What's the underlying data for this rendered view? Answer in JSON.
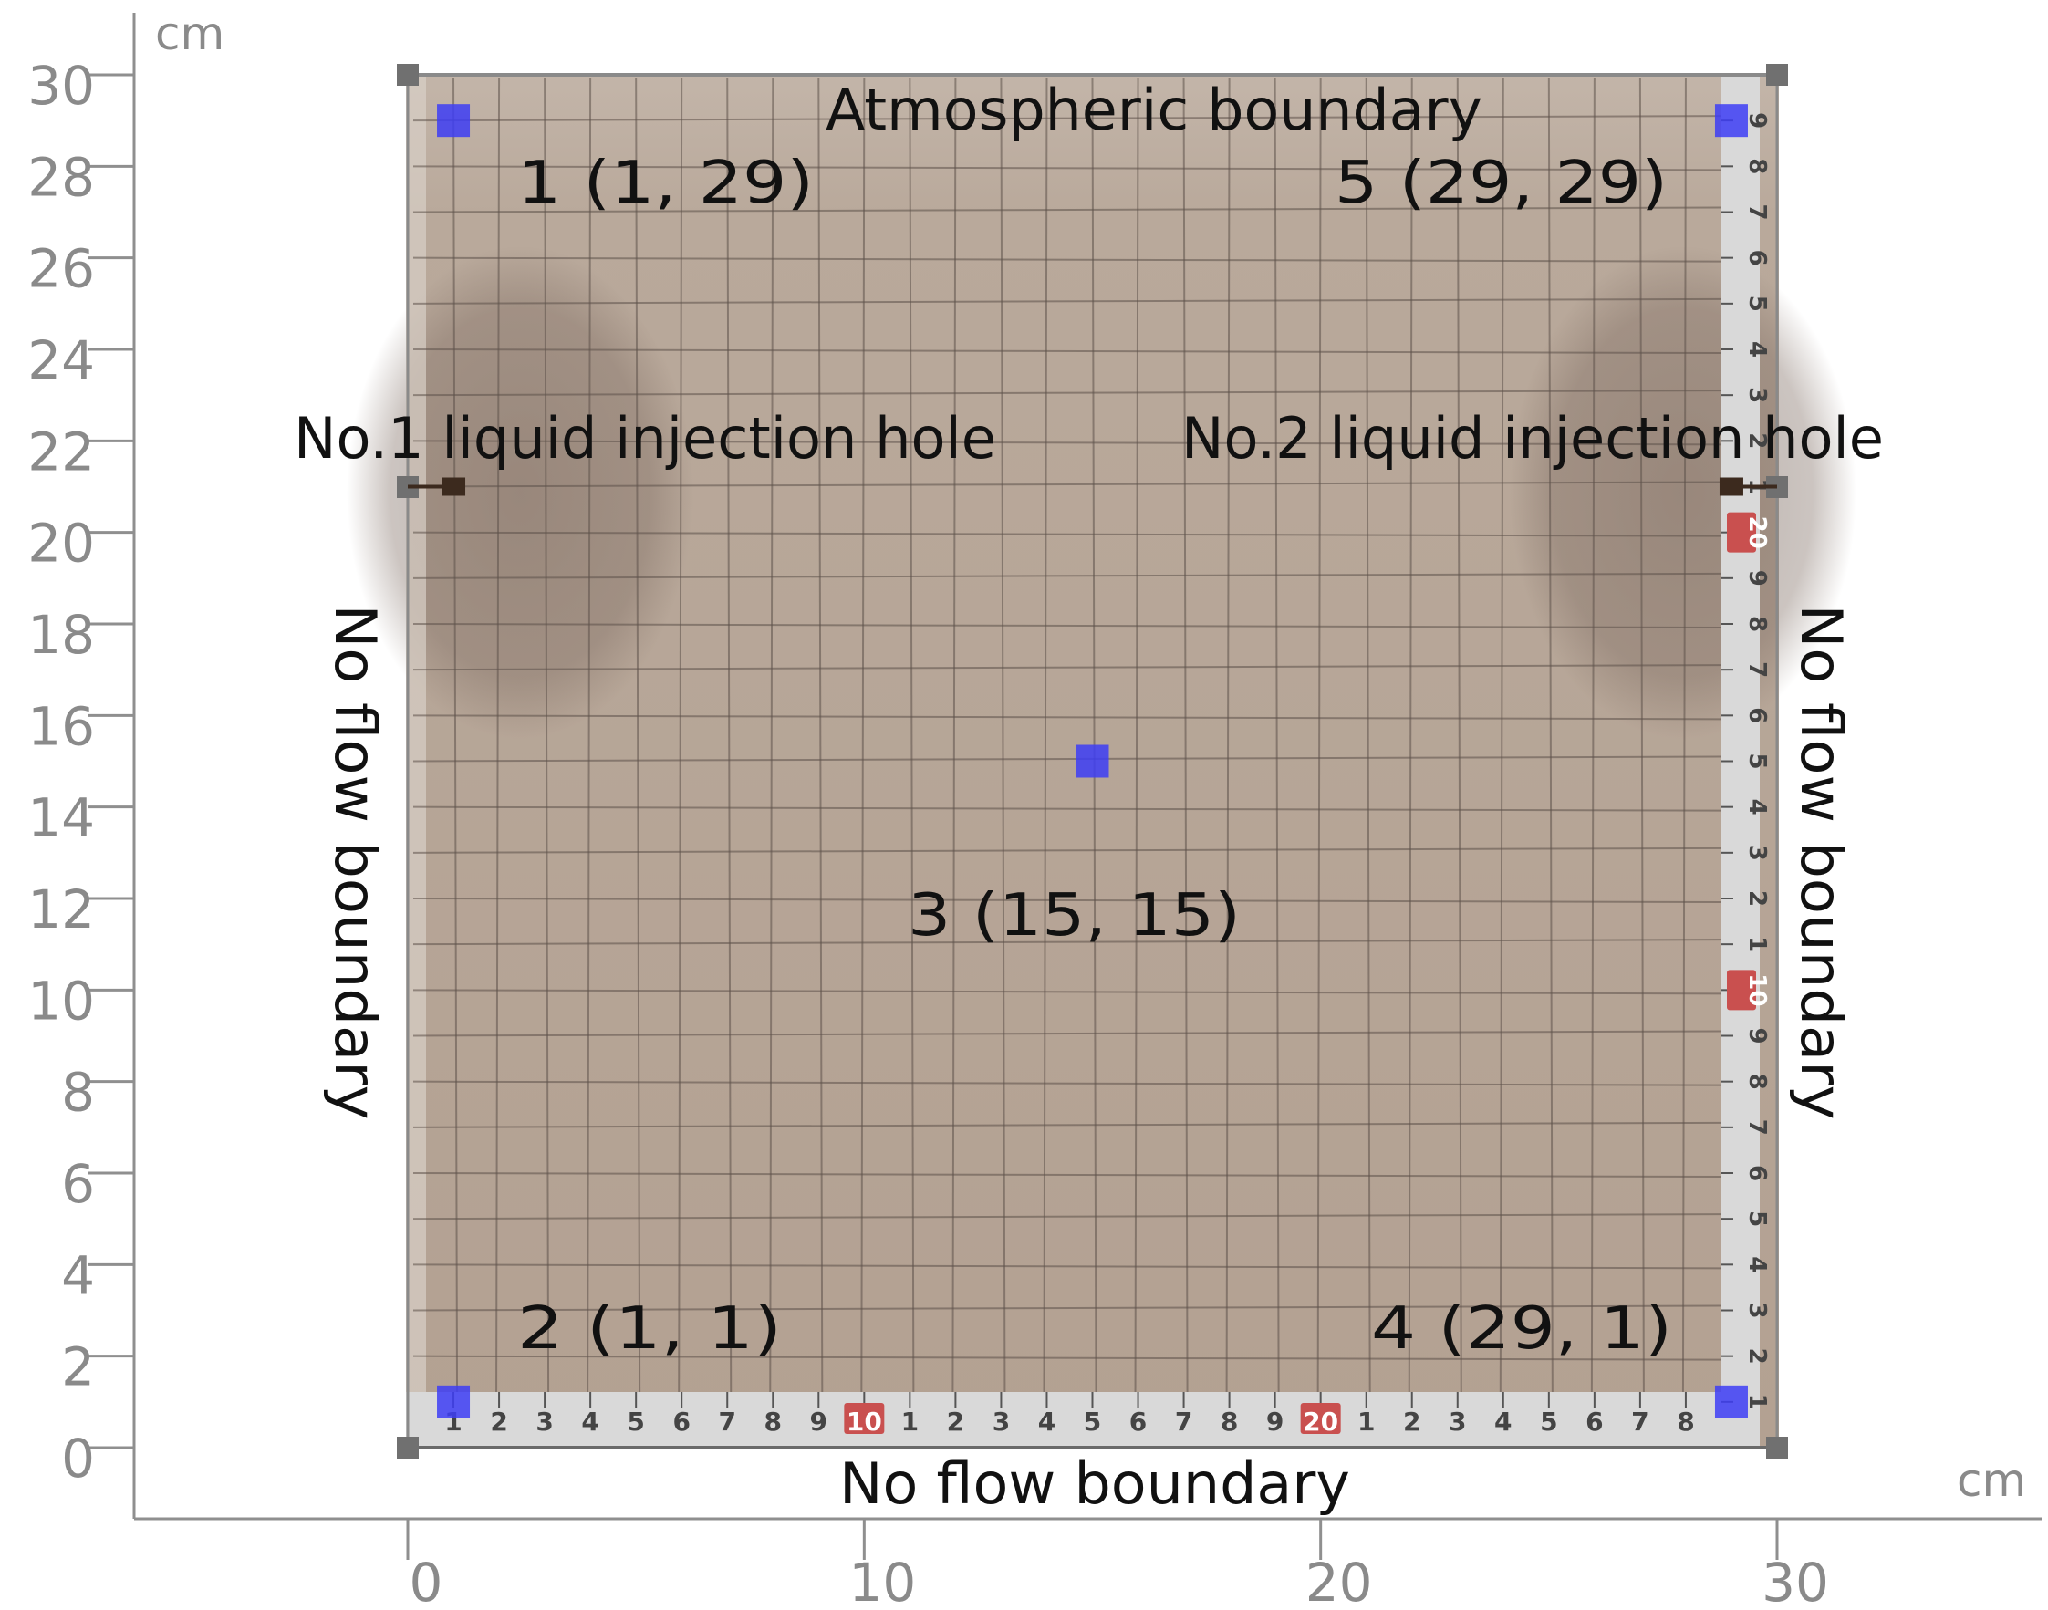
{
  "figure": {
    "x_unit": "cm",
    "y_unit": "cm",
    "x_ticks": [
      0,
      10,
      20,
      30
    ],
    "y_ticks": [
      0,
      2,
      4,
      6,
      8,
      10,
      12,
      14,
      16,
      18,
      20,
      22,
      24,
      26,
      28,
      30
    ],
    "boundaries": {
      "top": "Atmospheric boundary",
      "bottom": "No flow boundary",
      "left": "No flow boundary",
      "right": "No flow boundary"
    },
    "injection_holes": [
      {
        "label": "No.1 liquid injection hole",
        "x": 1,
        "y": 21
      },
      {
        "label": "No.2 liquid injection hole",
        "x": 29,
        "y": 21
      }
    ],
    "monitoring_points": [
      {
        "label": "1 (1, 29)",
        "x": 1,
        "y": 29
      },
      {
        "label": "2 (1, 1)",
        "x": 1,
        "y": 1
      },
      {
        "label": "3 (15, 15)",
        "x": 15,
        "y": 15
      },
      {
        "label": "4 (29, 1)",
        "x": 29,
        "y": 1
      },
      {
        "label": "5 (29, 29)",
        "x": 29,
        "y": 29
      }
    ],
    "colors": {
      "soil": "#b6a597",
      "grid_line": "#5e524b",
      "marker": "#3d3df5",
      "axis": "#8f8f8f",
      "tick_label": "#8a8a8a",
      "annotation": "#111111",
      "ruler": "#d9d9d9",
      "ruler_accent": "#c9504f"
    }
  }
}
